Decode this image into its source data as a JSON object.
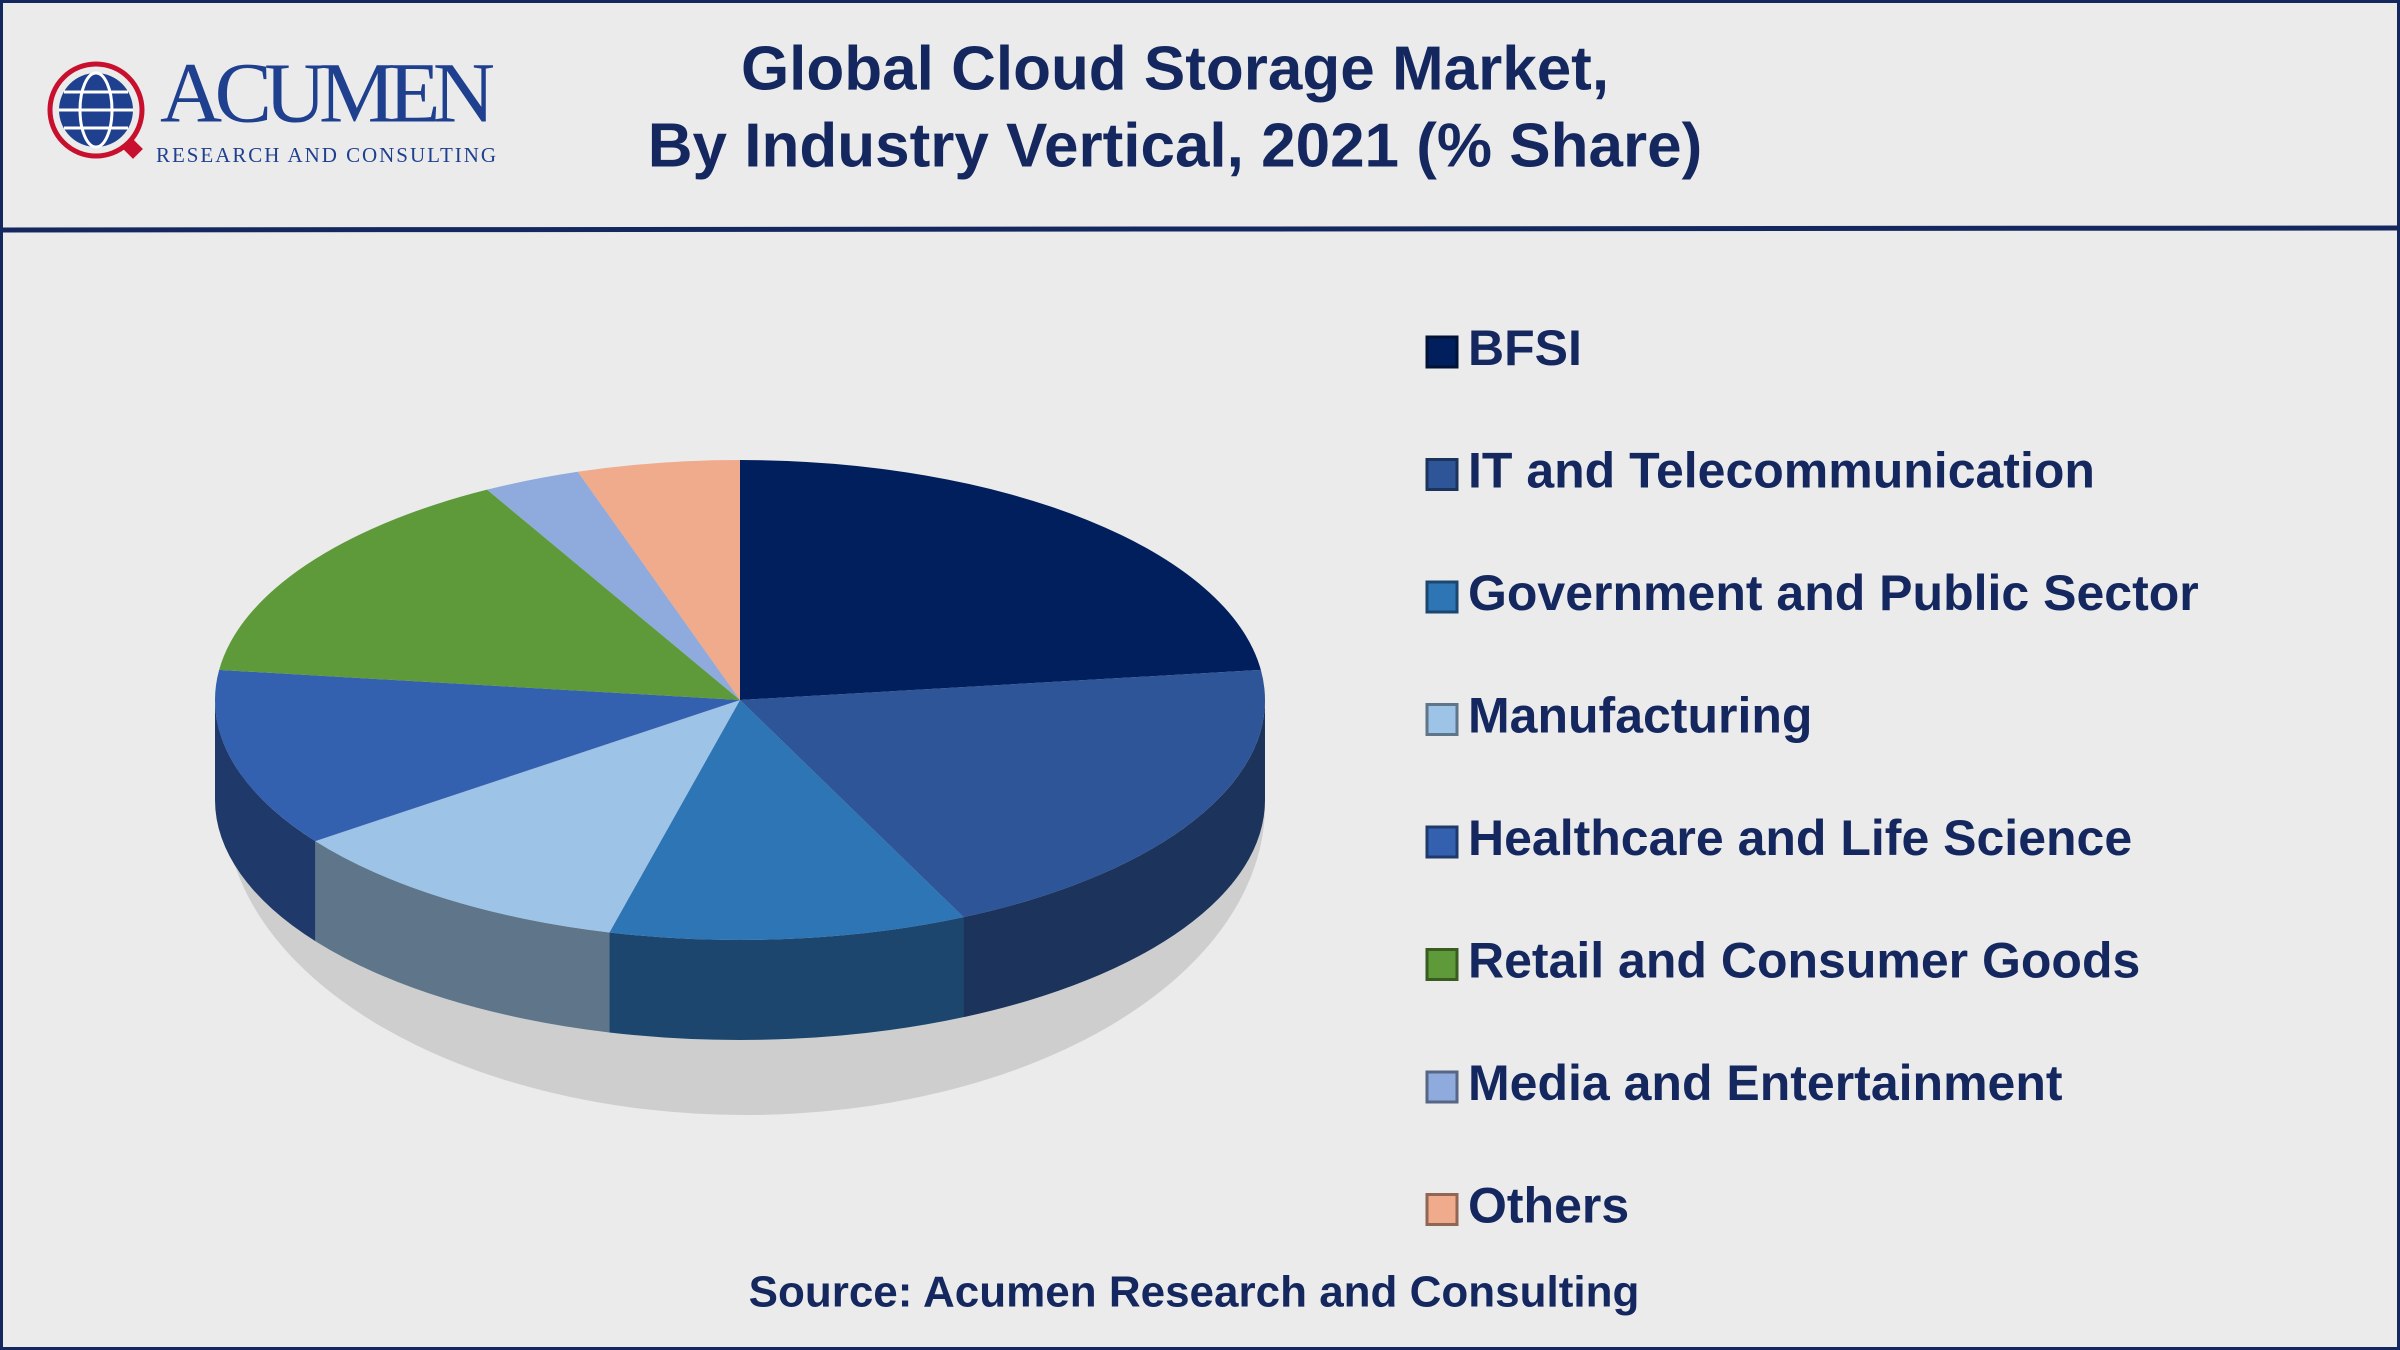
{
  "logo": {
    "name": "ACUMEN",
    "tagline": "RESEARCH AND CONSULTING"
  },
  "chart_data": {
    "type": "pie",
    "title": [
      "Global Cloud Storage Market,",
      "By Industry Vertical, 2021 (% Share)"
    ],
    "categories": [
      "BFSI",
      "IT and Telecommunication",
      "Government and Public Sector",
      "Manufacturing",
      "Healthcare and Life Science",
      "Retail and Consumer Goods",
      "Media and Entertainment",
      "Others"
    ],
    "values": [
      23,
      20,
      11,
      11,
      12,
      15,
      3,
      5
    ],
    "colors": [
      "#001f5c",
      "#2e5597",
      "#2e75b6",
      "#9dc3e6",
      "#3361b0",
      "#5f9a3a",
      "#8faadc",
      "#f0aa8c"
    ],
    "source": "Source: Acumen Research and Consulting"
  }
}
